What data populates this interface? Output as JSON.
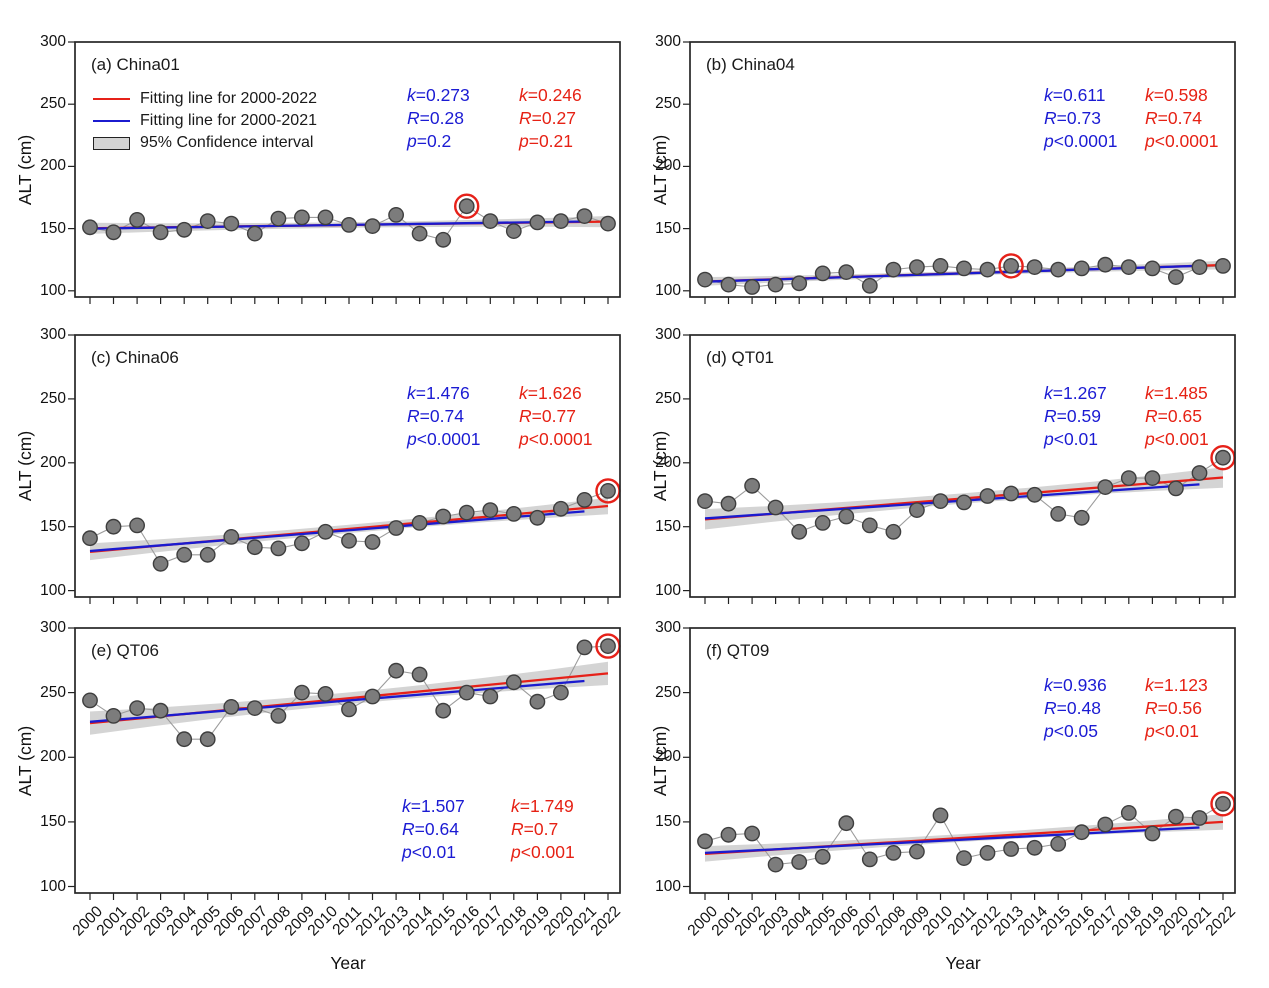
{
  "figure": {
    "ylabel": "ALT (cm)",
    "xlabel": "Year",
    "y_ticks": [
      300,
      250,
      200,
      150,
      100
    ],
    "years": [
      2000,
      2001,
      2002,
      2003,
      2004,
      2005,
      2006,
      2007,
      2008,
      2009,
      2010,
      2011,
      2012,
      2013,
      2014,
      2015,
      2016,
      2017,
      2018,
      2019,
      2020,
      2021,
      2022
    ],
    "legend_items": [
      {
        "symbol": "line",
        "color": "#e62119",
        "label": "Fitting line for 2000-2022"
      },
      {
        "symbol": "line",
        "color": "#1b1bcf",
        "label": "Fitting line for 2000-2021"
      },
      {
        "symbol": "patch",
        "color": "#d4d4d4",
        "label": "95% Confidence interval"
      }
    ],
    "colors": {
      "fit_2000_2022": "#e62119",
      "fit_2000_2021": "#1b1bcf",
      "confidence_band": "#c9c9c9",
      "point_fill": "#7c7c7c",
      "point_stroke": "#3e3e3e",
      "connector": "#9c9c9c",
      "highlight_ring": "#e62119",
      "stats_blue": "#1b1bd3",
      "stats_red": "#e62114"
    }
  },
  "chart_data": [
    {
      "type": "scatter",
      "panel": "a",
      "title": "(a) China01",
      "values": [
        151,
        147,
        157,
        147,
        149,
        156,
        154,
        146,
        158,
        159,
        159,
        153,
        152,
        161,
        146,
        141,
        168,
        156,
        148,
        155,
        156,
        160,
        154
      ],
      "fit_2000_2021": {
        "start": 150.0,
        "end": 155.7
      },
      "fit_2000_2022": {
        "start": 150.2,
        "end": 155.6
      },
      "ci_halfwidth_end": 4.5,
      "ci_halfwidth_mid": 2.2,
      "highlight_year": 2016,
      "stats_2000_2021": [
        "k=0.273",
        "R=0.28",
        "p=0.2"
      ],
      "stats_2000_2022": [
        "k=0.246",
        "R=0.27",
        "p=0.21"
      ]
    },
    {
      "type": "scatter",
      "panel": "b",
      "title": "(b) China04",
      "values": [
        109,
        105,
        103,
        105,
        106,
        114,
        115,
        104,
        117,
        119,
        120,
        118,
        117,
        120,
        119,
        117,
        118,
        121,
        119,
        118,
        111,
        119,
        120
      ],
      "fit_2000_2021": {
        "start": 107.3,
        "end": 120.1
      },
      "fit_2000_2022": {
        "start": 107.5,
        "end": 120.7
      },
      "ci_halfwidth_end": 3.5,
      "ci_halfwidth_mid": 1.8,
      "highlight_year": 2013,
      "stats_2000_2021": [
        "k=0.611",
        "R=0.73",
        "p<0.0001"
      ],
      "stats_2000_2022": [
        "k=0.598",
        "R=0.74",
        "p<0.0001"
      ]
    },
    {
      "type": "scatter",
      "panel": "c",
      "title": "(c) China06",
      "values": [
        141,
        150,
        151,
        121,
        128,
        128,
        142,
        134,
        133,
        137,
        146,
        139,
        138,
        149,
        153,
        158,
        161,
        163,
        160,
        157,
        164,
        171,
        178
      ],
      "fit_2000_2021": {
        "start": 131.0,
        "end": 162.0
      },
      "fit_2000_2022": {
        "start": 130.4,
        "end": 166.2
      },
      "ci_halfwidth_end": 6.5,
      "ci_halfwidth_mid": 3.2,
      "highlight_year": 2022,
      "stats_2000_2021": [
        "k=1.476",
        "R=0.74",
        "p<0.0001"
      ],
      "stats_2000_2022": [
        "k=1.626",
        "R=0.77",
        "p<0.0001"
      ]
    },
    {
      "type": "scatter",
      "panel": "d",
      "title": "(d) QT01",
      "values": [
        170,
        168,
        182,
        165,
        146,
        153,
        158,
        151,
        146,
        163,
        170,
        169,
        174,
        176,
        175,
        160,
        157,
        181,
        188,
        188,
        180,
        192,
        204
      ],
      "fit_2000_2021": {
        "start": 156.5,
        "end": 183.1
      },
      "fit_2000_2022": {
        "start": 155.8,
        "end": 188.5
      },
      "ci_halfwidth_end": 8.0,
      "ci_halfwidth_mid": 4.0,
      "highlight_year": 2022,
      "stats_2000_2021": [
        "k=1.267",
        "R=0.59",
        "p<0.01"
      ],
      "stats_2000_2022": [
        "k=1.485",
        "R=0.65",
        "p<0.001"
      ]
    },
    {
      "type": "scatter",
      "panel": "e",
      "title": "(e) QT06",
      "values": [
        244,
        232,
        238,
        236,
        214,
        214,
        239,
        238,
        232,
        250,
        249,
        237,
        247,
        267,
        264,
        236,
        250,
        247,
        258,
        243,
        250,
        285,
        286
      ],
      "fit_2000_2021": {
        "start": 227.4,
        "end": 259.0
      },
      "fit_2000_2022": {
        "start": 226.4,
        "end": 264.9
      },
      "ci_halfwidth_end": 9.0,
      "ci_halfwidth_mid": 4.5,
      "highlight_year": 2022,
      "stats_2000_2021": [
        "k=1.507",
        "R=0.64",
        "p<0.01"
      ],
      "stats_2000_2022": [
        "k=1.749",
        "R=0.7",
        "p<0.001"
      ]
    },
    {
      "type": "scatter",
      "panel": "f",
      "title": "(f) QT09",
      "values": [
        135,
        140,
        141,
        117,
        119,
        123,
        149,
        121,
        126,
        127,
        155,
        122,
        126,
        129,
        130,
        133,
        142,
        148,
        157,
        141,
        154,
        153,
        164
      ],
      "fit_2000_2021": {
        "start": 126.0,
        "end": 145.7
      },
      "fit_2000_2022": {
        "start": 125.3,
        "end": 150.0
      },
      "ci_halfwidth_end": 6.0,
      "ci_halfwidth_mid": 3.0,
      "highlight_year": 2022,
      "stats_2000_2021": [
        "k=0.936",
        "R=0.48",
        "p<0.05"
      ],
      "stats_2000_2022": [
        "k=1.123",
        "R=0.56",
        "p<0.01"
      ]
    }
  ]
}
